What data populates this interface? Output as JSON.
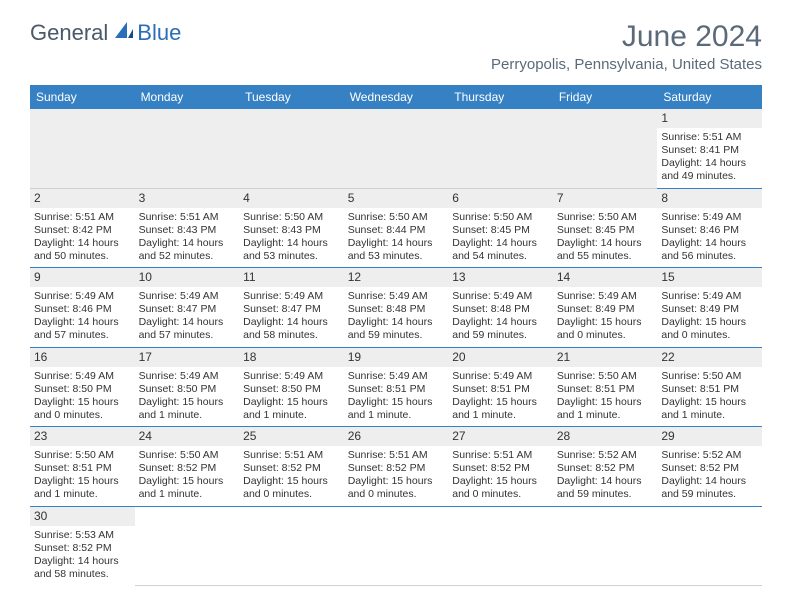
{
  "logo": {
    "general": "General",
    "blue": "Blue"
  },
  "title": "June 2024",
  "subtitle": "Perryopolis, Pennsylvania, United States",
  "day_headers": [
    "Sunday",
    "Monday",
    "Tuesday",
    "Wednesday",
    "Thursday",
    "Friday",
    "Saturday"
  ],
  "weeks": [
    [
      null,
      null,
      null,
      null,
      null,
      null,
      {
        "n": "1",
        "sunrise": "Sunrise: 5:51 AM",
        "sunset": "Sunset: 8:41 PM",
        "daylight": "Daylight: 14 hours and 49 minutes."
      }
    ],
    [
      {
        "n": "2",
        "sunrise": "Sunrise: 5:51 AM",
        "sunset": "Sunset: 8:42 PM",
        "daylight": "Daylight: 14 hours and 50 minutes."
      },
      {
        "n": "3",
        "sunrise": "Sunrise: 5:51 AM",
        "sunset": "Sunset: 8:43 PM",
        "daylight": "Daylight: 14 hours and 52 minutes."
      },
      {
        "n": "4",
        "sunrise": "Sunrise: 5:50 AM",
        "sunset": "Sunset: 8:43 PM",
        "daylight": "Daylight: 14 hours and 53 minutes."
      },
      {
        "n": "5",
        "sunrise": "Sunrise: 5:50 AM",
        "sunset": "Sunset: 8:44 PM",
        "daylight": "Daylight: 14 hours and 53 minutes."
      },
      {
        "n": "6",
        "sunrise": "Sunrise: 5:50 AM",
        "sunset": "Sunset: 8:45 PM",
        "daylight": "Daylight: 14 hours and 54 minutes."
      },
      {
        "n": "7",
        "sunrise": "Sunrise: 5:50 AM",
        "sunset": "Sunset: 8:45 PM",
        "daylight": "Daylight: 14 hours and 55 minutes."
      },
      {
        "n": "8",
        "sunrise": "Sunrise: 5:49 AM",
        "sunset": "Sunset: 8:46 PM",
        "daylight": "Daylight: 14 hours and 56 minutes."
      }
    ],
    [
      {
        "n": "9",
        "sunrise": "Sunrise: 5:49 AM",
        "sunset": "Sunset: 8:46 PM",
        "daylight": "Daylight: 14 hours and 57 minutes."
      },
      {
        "n": "10",
        "sunrise": "Sunrise: 5:49 AM",
        "sunset": "Sunset: 8:47 PM",
        "daylight": "Daylight: 14 hours and 57 minutes."
      },
      {
        "n": "11",
        "sunrise": "Sunrise: 5:49 AM",
        "sunset": "Sunset: 8:47 PM",
        "daylight": "Daylight: 14 hours and 58 minutes."
      },
      {
        "n": "12",
        "sunrise": "Sunrise: 5:49 AM",
        "sunset": "Sunset: 8:48 PM",
        "daylight": "Daylight: 14 hours and 59 minutes."
      },
      {
        "n": "13",
        "sunrise": "Sunrise: 5:49 AM",
        "sunset": "Sunset: 8:48 PM",
        "daylight": "Daylight: 14 hours and 59 minutes."
      },
      {
        "n": "14",
        "sunrise": "Sunrise: 5:49 AM",
        "sunset": "Sunset: 8:49 PM",
        "daylight": "Daylight: 15 hours and 0 minutes."
      },
      {
        "n": "15",
        "sunrise": "Sunrise: 5:49 AM",
        "sunset": "Sunset: 8:49 PM",
        "daylight": "Daylight: 15 hours and 0 minutes."
      }
    ],
    [
      {
        "n": "16",
        "sunrise": "Sunrise: 5:49 AM",
        "sunset": "Sunset: 8:50 PM",
        "daylight": "Daylight: 15 hours and 0 minutes."
      },
      {
        "n": "17",
        "sunrise": "Sunrise: 5:49 AM",
        "sunset": "Sunset: 8:50 PM",
        "daylight": "Daylight: 15 hours and 1 minute."
      },
      {
        "n": "18",
        "sunrise": "Sunrise: 5:49 AM",
        "sunset": "Sunset: 8:50 PM",
        "daylight": "Daylight: 15 hours and 1 minute."
      },
      {
        "n": "19",
        "sunrise": "Sunrise: 5:49 AM",
        "sunset": "Sunset: 8:51 PM",
        "daylight": "Daylight: 15 hours and 1 minute."
      },
      {
        "n": "20",
        "sunrise": "Sunrise: 5:49 AM",
        "sunset": "Sunset: 8:51 PM",
        "daylight": "Daylight: 15 hours and 1 minute."
      },
      {
        "n": "21",
        "sunrise": "Sunrise: 5:50 AM",
        "sunset": "Sunset: 8:51 PM",
        "daylight": "Daylight: 15 hours and 1 minute."
      },
      {
        "n": "22",
        "sunrise": "Sunrise: 5:50 AM",
        "sunset": "Sunset: 8:51 PM",
        "daylight": "Daylight: 15 hours and 1 minute."
      }
    ],
    [
      {
        "n": "23",
        "sunrise": "Sunrise: 5:50 AM",
        "sunset": "Sunset: 8:51 PM",
        "daylight": "Daylight: 15 hours and 1 minute."
      },
      {
        "n": "24",
        "sunrise": "Sunrise: 5:50 AM",
        "sunset": "Sunset: 8:52 PM",
        "daylight": "Daylight: 15 hours and 1 minute."
      },
      {
        "n": "25",
        "sunrise": "Sunrise: 5:51 AM",
        "sunset": "Sunset: 8:52 PM",
        "daylight": "Daylight: 15 hours and 0 minutes."
      },
      {
        "n": "26",
        "sunrise": "Sunrise: 5:51 AM",
        "sunset": "Sunset: 8:52 PM",
        "daylight": "Daylight: 15 hours and 0 minutes."
      },
      {
        "n": "27",
        "sunrise": "Sunrise: 5:51 AM",
        "sunset": "Sunset: 8:52 PM",
        "daylight": "Daylight: 15 hours and 0 minutes."
      },
      {
        "n": "28",
        "sunrise": "Sunrise: 5:52 AM",
        "sunset": "Sunset: 8:52 PM",
        "daylight": "Daylight: 14 hours and 59 minutes."
      },
      {
        "n": "29",
        "sunrise": "Sunrise: 5:52 AM",
        "sunset": "Sunset: 8:52 PM",
        "daylight": "Daylight: 14 hours and 59 minutes."
      }
    ],
    [
      {
        "n": "30",
        "sunrise": "Sunrise: 5:53 AM",
        "sunset": "Sunset: 8:52 PM",
        "daylight": "Daylight: 14 hours and 58 minutes."
      },
      null,
      null,
      null,
      null,
      null,
      null
    ]
  ],
  "colors": {
    "header_bg": "#3581c4",
    "header_text": "#ffffff",
    "daynum_bg": "#eeeeee",
    "border": "#3581c4",
    "title_color": "#5a6a78"
  }
}
